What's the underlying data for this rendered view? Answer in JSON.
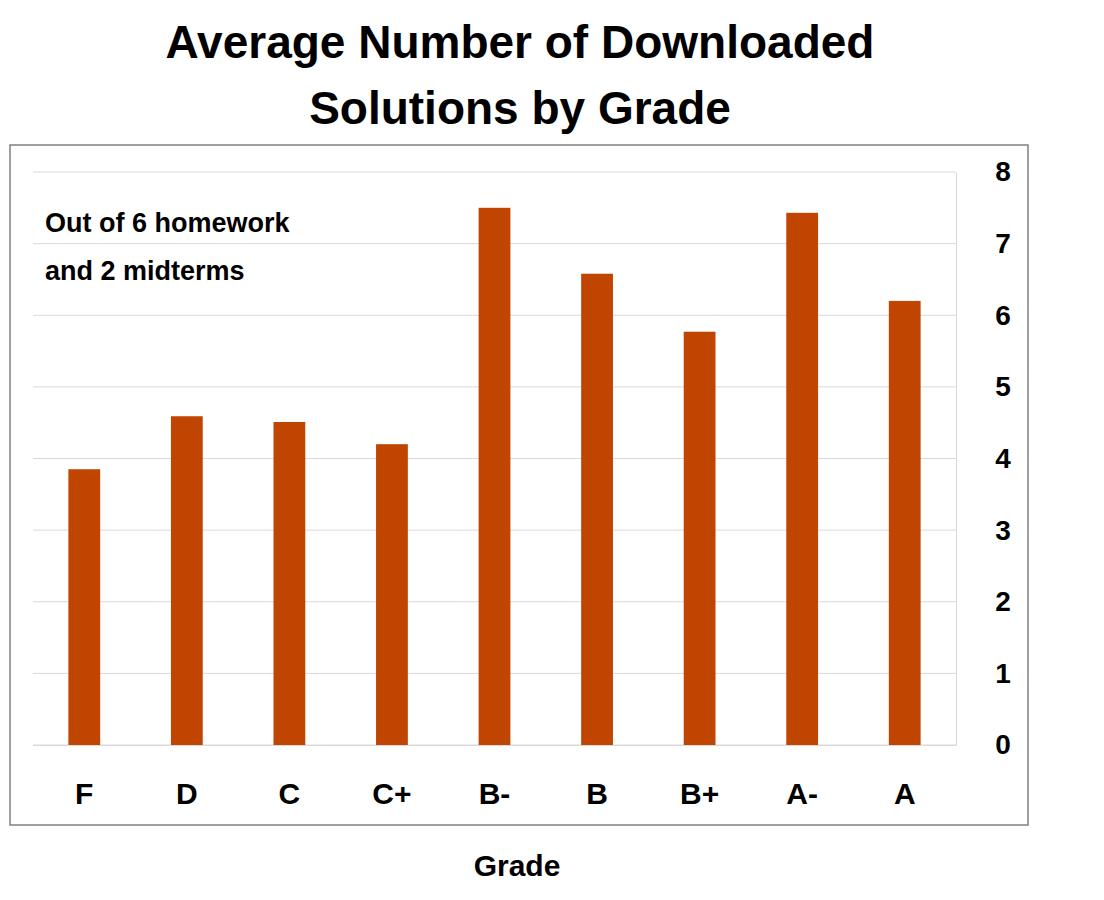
{
  "chart_data": {
    "type": "bar",
    "title": "Average Number of Downloaded\nSolutions by Grade",
    "annotation": "Out of 6 homework\nand 2 midterms",
    "x_label": "Grade",
    "categories": [
      "F",
      "D",
      "C",
      "C+",
      "B-",
      "B",
      "B+",
      "A-",
      "A"
    ],
    "values": [
      3.85,
      4.59,
      4.51,
      4.2,
      7.5,
      6.58,
      5.77,
      7.43,
      6.2
    ],
    "color": "#c04501",
    "ylim": [
      0,
      8
    ],
    "yticks": [
      0,
      1,
      2,
      3,
      4,
      5,
      6,
      7,
      8
    ],
    "grid": true
  }
}
